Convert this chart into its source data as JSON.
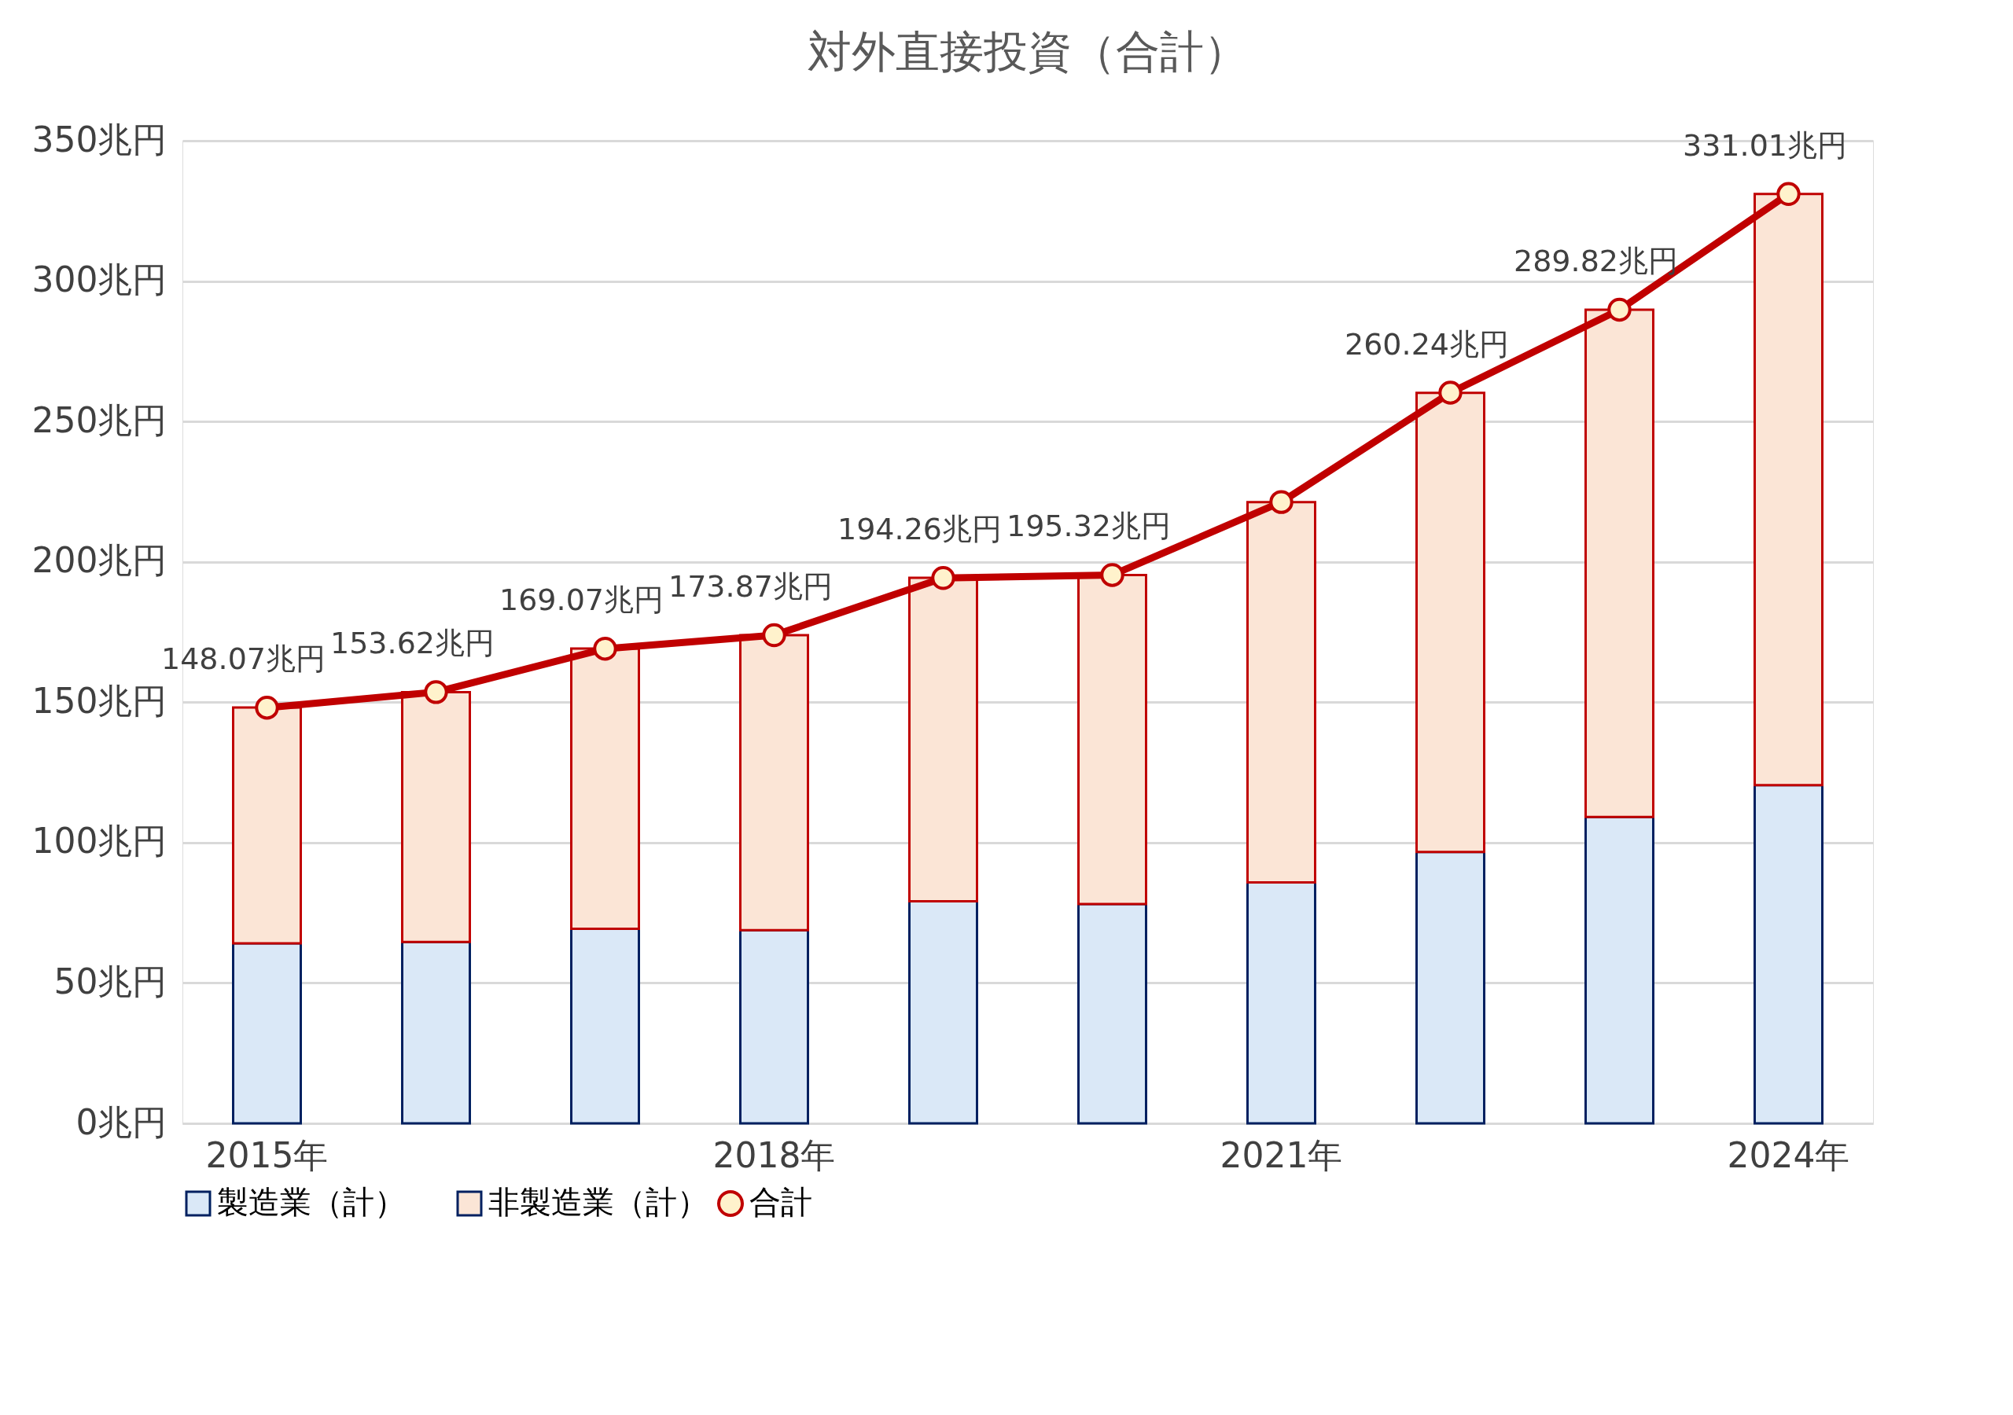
{
  "chart_data": {
    "type": "bar",
    "title": "対外直接投資（合計）",
    "categories": [
      "2015年",
      null,
      null,
      "2018年",
      null,
      null,
      "2021年",
      null,
      null,
      "2024年"
    ],
    "stacked": true,
    "series": [
      {
        "name": "製造業（計）",
        "color": "#dae8f7",
        "values": [
          64.1,
          64.6,
          69.3,
          68.8,
          79.1,
          78.1,
          85.8,
          96.7,
          109.1,
          120.5
        ]
      },
      {
        "name": "非製造業（計）",
        "color": "#fbe5d6",
        "values": [
          84.0,
          89.0,
          99.8,
          105.1,
          115.2,
          117.2,
          135.5,
          163.5,
          180.7,
          210.5
        ]
      },
      {
        "name": "合計",
        "type": "line",
        "color": "#c00000",
        "values": [
          148.07,
          153.62,
          169.07,
          173.87,
          194.26,
          195.32,
          221.3,
          260.24,
          289.82,
          331.01
        ],
        "value_labels": [
          "148.07兆円",
          "153.62兆円",
          "169.07兆円",
          "173.87兆円",
          "194.26兆円",
          "195.32兆円",
          null,
          "260.24兆円",
          "289.82兆円",
          "331.01兆円"
        ]
      }
    ],
    "ylim": [
      0,
      350
    ],
    "yticks": [
      {
        "value": 0,
        "label": "0兆円"
      },
      {
        "value": 50,
        "label": "50兆円"
      },
      {
        "value": 100,
        "label": "100兆円"
      },
      {
        "value": 150,
        "label": "150兆円"
      },
      {
        "value": 200,
        "label": "200兆円"
      },
      {
        "value": 250,
        "label": "250兆円"
      },
      {
        "value": 300,
        "label": "300兆円"
      },
      {
        "value": 350,
        "label": "350兆円"
      }
    ],
    "grid": "y",
    "legend": "bottom",
    "marker": "circle",
    "line_style": "solid"
  }
}
